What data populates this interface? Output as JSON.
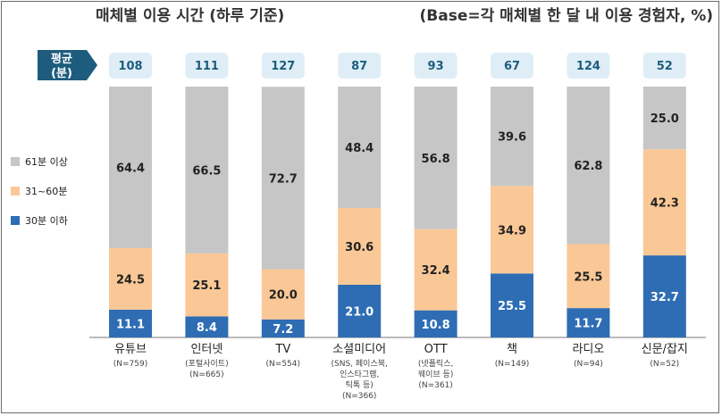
{
  "chart_data": {
    "type": "bar",
    "stacked": true,
    "normalized_percent": true,
    "title": "매체별 이용 시간 (하루 기준)",
    "base_note": "(Base=각 매체별 한 달 내 이용 경험자, %)",
    "average_label": [
      "평균",
      "(분)"
    ],
    "categories": [
      {
        "name": "유튜브",
        "sub": [
          "(N=759)"
        ]
      },
      {
        "name": "인터넷",
        "sub": [
          "(포털사이트)",
          "(N=665)"
        ]
      },
      {
        "name": "TV",
        "sub": [
          "(N=554)"
        ]
      },
      {
        "name": "소셜미디어",
        "sub": [
          "(SNS, 페이스북,",
          "인스타그램,",
          "틱톡 등)",
          "(N=366)"
        ]
      },
      {
        "name": "OTT",
        "sub": [
          "(넷플릭스,",
          "웨이브 등)",
          "(N=361)"
        ]
      },
      {
        "name": "책",
        "sub": [
          "(N=149)"
        ]
      },
      {
        "name": "라디오",
        "sub": [
          "(N=94)"
        ]
      },
      {
        "name": "신문/잡지",
        "sub": [
          "(N=52)"
        ]
      }
    ],
    "averages": [
      108,
      111,
      127,
      87,
      93,
      67,
      124,
      52
    ],
    "series": [
      {
        "name": "30분 이하",
        "color": "#2e6db4",
        "label_color": "#ffffff",
        "values": [
          11.1,
          8.4,
          7.2,
          21.0,
          10.8,
          25.5,
          11.7,
          32.7
        ]
      },
      {
        "name": "31~60분",
        "color": "#fac896",
        "label_color": "#222222",
        "values": [
          24.5,
          25.1,
          20.0,
          30.6,
          32.4,
          34.9,
          25.5,
          42.3
        ]
      },
      {
        "name": "61분 이상",
        "color": "#c6c6c6",
        "label_color": "#222222",
        "values": [
          64.4,
          66.5,
          72.7,
          48.4,
          56.8,
          39.6,
          62.8,
          25.0
        ]
      }
    ],
    "legend_order": [
      "61분 이상",
      "31~60분",
      "30분 이하"
    ],
    "ylim": [
      0,
      100
    ],
    "colors": {
      "avg_badge_bg": "#1e5c7e",
      "avg_box_bg": "#dfeef6",
      "avg_box_text": "#1e5c7e"
    }
  }
}
